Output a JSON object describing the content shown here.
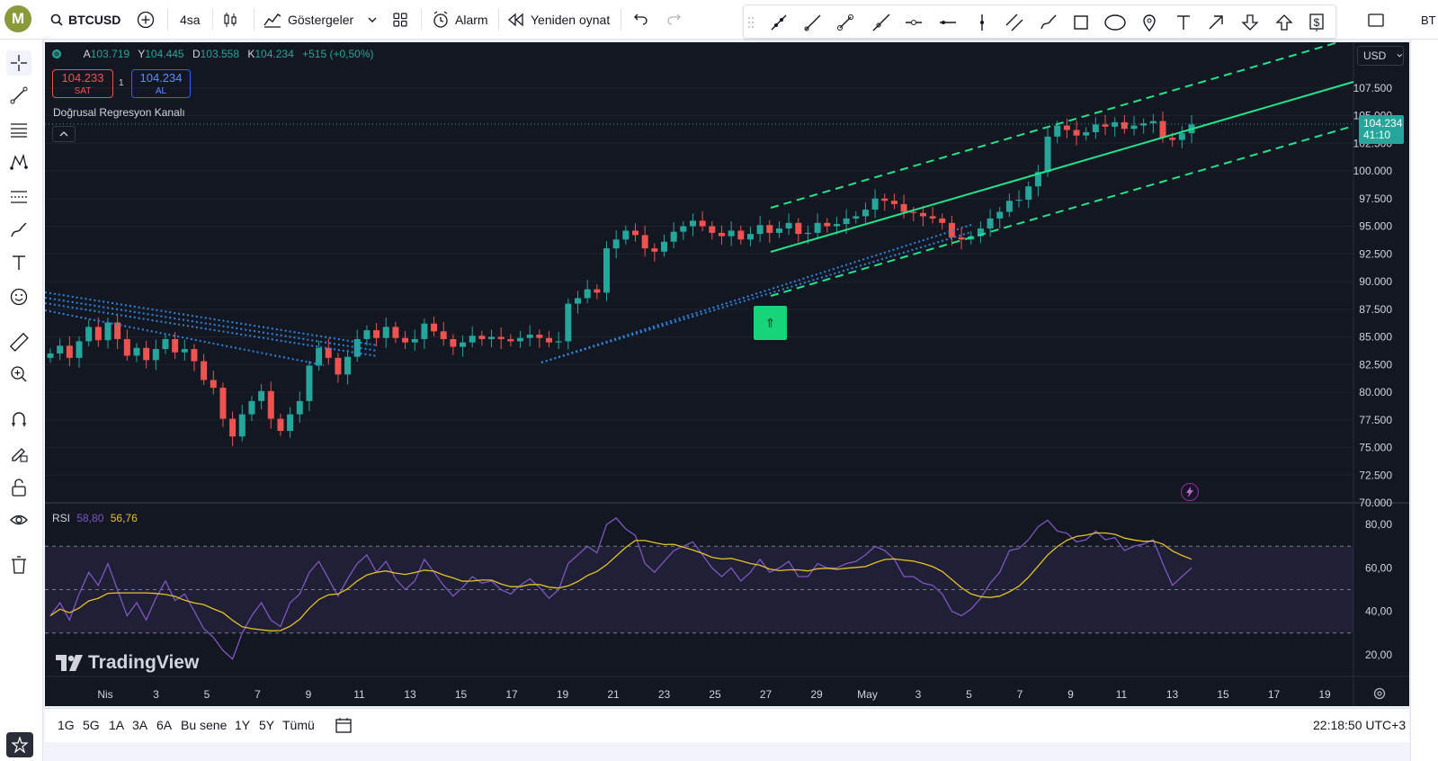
{
  "header": {
    "symbol": "BTCUSD",
    "interval": "4sa",
    "indicators_label": "Göstergeler",
    "alert_label": "Alarm",
    "replay_label": "Yeniden oynat",
    "right_cut_text": "BT"
  },
  "legend": {
    "open_label": "A",
    "open_value": "103.719",
    "high_label": "Y",
    "high_value": "104.445",
    "low_label": "D",
    "low_value": "103.558",
    "close_label": "K",
    "close_value": "104.234",
    "change_value": "+515 (+0,50%)"
  },
  "trade": {
    "sell_price": "104.233",
    "sell_label": "SAT",
    "spread": "1",
    "buy_price": "104.234",
    "buy_label": "AL"
  },
  "study_label": "Doğrusal Regresyon Kanalı",
  "currency": "USD",
  "price_axis": [
    "107.500",
    "105.000",
    "102.500",
    "100.000",
    "97.500",
    "95.000",
    "92.500",
    "90.000",
    "87.500",
    "85.000",
    "82.500",
    "80.000",
    "77.500",
    "75.000",
    "72.500",
    "70.000"
  ],
  "last_price": {
    "value": "104.234",
    "countdown": "41:10"
  },
  "rsi": {
    "label": "RSI",
    "value1": "58,80",
    "value2": "56,76",
    "axis": [
      "80,00",
      "60,00",
      "40,00",
      "20,00"
    ]
  },
  "time_axis": [
    "Nis",
    "3",
    "5",
    "7",
    "9",
    "11",
    "13",
    "15",
    "17",
    "19",
    "21",
    "23",
    "25",
    "27",
    "29",
    "May",
    "3",
    "5",
    "7",
    "9",
    "11",
    "13",
    "15",
    "17",
    "19"
  ],
  "watermark": "TradingView",
  "bottombar": {
    "ranges": [
      "1G",
      "5G",
      "1A",
      "3A",
      "6A",
      "Bu sene",
      "1Y",
      "5Y",
      "Tümü"
    ],
    "clock": "22:18:50 UTC+3"
  },
  "colors": {
    "bg": "#131722",
    "up": "#26a69a",
    "down": "#ef5350",
    "regression": "#22e58a",
    "rsi_line": "#7e57c2",
    "rsi_ma": "#e6c229",
    "trend_dotted": "#2e86de",
    "signal": "#17d47a",
    "price_label": "#26a69a"
  },
  "chart_data": {
    "type": "candlestick",
    "series": [
      {
        "name": "BTCUSD",
        "close": [
          83.5,
          84.2,
          83.1,
          84.6,
          85.9,
          84.7,
          86.3,
          84.8,
          83.3,
          84.0,
          82.9,
          83.9,
          84.8,
          83.6,
          83.9,
          82.8,
          81.1,
          80.4,
          77.6,
          76.0,
          78.0,
          79.2,
          80.1,
          77.6,
          76.5,
          78.0,
          79.2,
          82.4,
          84.0,
          83.1,
          81.6,
          83.2,
          84.8,
          85.6,
          84.9,
          85.9,
          84.9,
          84.5,
          84.8,
          86.2,
          85.5,
          84.8,
          84.1,
          84.5,
          85.1,
          84.8,
          85.0,
          84.8,
          84.6,
          84.9,
          85.2,
          84.9,
          84.5,
          84.6,
          88.0,
          88.5,
          89.3,
          89.0,
          93.0,
          93.8,
          94.6,
          94.2,
          93.0,
          92.7,
          93.6,
          94.5,
          95.0,
          95.5,
          95.0,
          94.4,
          94.1,
          94.6,
          93.8,
          94.3,
          95.1,
          94.4,
          94.8,
          95.3,
          94.3,
          94.4,
          95.3,
          95.0,
          95.2,
          95.7,
          95.9,
          96.5,
          97.5,
          97.3,
          97.0,
          96.3,
          96.2,
          95.9,
          95.7,
          95.3,
          94.0,
          93.8,
          94.1,
          94.8,
          95.7,
          96.3,
          97.3,
          97.4,
          98.6,
          99.9,
          103.1,
          104.1,
          103.7,
          103.2,
          103.5,
          104.2,
          104.0,
          104.4,
          103.8,
          104.1,
          104.3,
          104.5,
          103.0,
          102.8,
          103.4,
          104.2
        ]
      }
    ],
    "rsi": {
      "name": "RSI",
      "values": [
        38,
        44,
        36,
        48,
        58,
        52,
        62,
        50,
        38,
        44,
        36,
        46,
        54,
        45,
        48,
        40,
        32,
        28,
        22,
        18,
        30,
        38,
        44,
        36,
        33,
        44,
        48,
        58,
        63,
        55,
        47,
        55,
        62,
        66,
        58,
        63,
        55,
        50,
        54,
        64,
        58,
        52,
        47,
        51,
        56,
        53,
        54,
        50,
        48,
        52,
        55,
        51,
        46,
        50,
        62,
        66,
        70,
        67,
        80,
        83,
        78,
        75,
        62,
        58,
        63,
        68,
        70,
        72,
        66,
        60,
        56,
        60,
        54,
        58,
        64,
        58,
        60,
        63,
        56,
        56,
        62,
        60,
        60,
        62,
        63,
        66,
        70,
        68,
        64,
        56,
        56,
        53,
        52,
        48,
        40,
        38,
        41,
        46,
        53,
        58,
        68,
        69,
        73,
        79,
        82,
        77,
        76,
        72,
        73,
        77,
        73,
        74,
        68,
        70,
        71,
        73,
        62,
        52,
        56,
        60
      ]
    },
    "rsi_levels": [
      70,
      50,
      30
    ],
    "ylim": [
      70,
      110
    ],
    "rsi_ylim": [
      10,
      90
    ]
  }
}
